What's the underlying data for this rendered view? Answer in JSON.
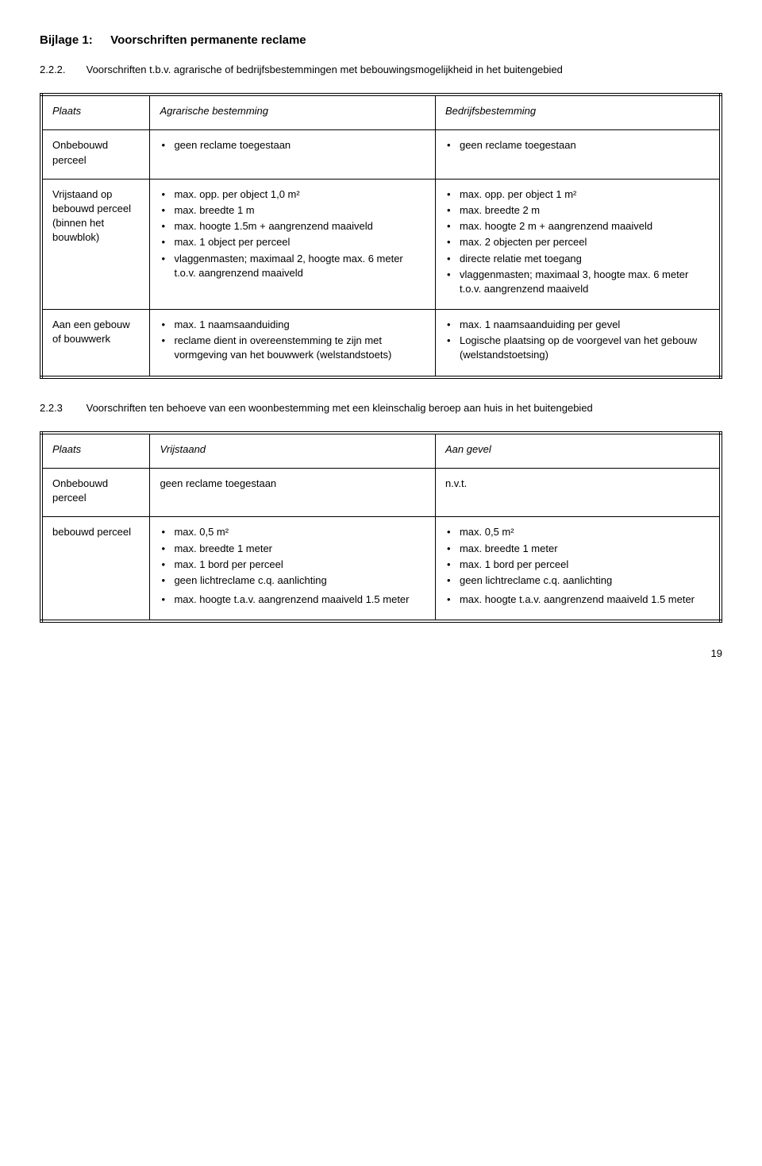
{
  "heading1": {
    "num": "Bijlage 1:",
    "text": "Voorschriften permanente reclame"
  },
  "heading2": {
    "num": "2.2.2.",
    "text": "Voorschriften t.b.v. agrarische of bedrijfsbestemmingen met bebouwingsmogelijkheid in het buitengebied"
  },
  "table1": {
    "col_label": "Plaats",
    "col2_label": "Agrarische bestemming",
    "col3_label": "Bedrijfsbestemming",
    "r1_head": "Onbebouwd perceel",
    "r1_c2": "geen reclame toegestaan",
    "r1_c3": "geen reclame toegestaan",
    "r2_head": "Vrijstaand op bebouwd perceel (binnen het bouwblok)",
    "r2_c2": {
      "items": [
        "max. opp. per object 1,0 m²",
        "max. breedte 1 m",
        "max. hoogte 1.5m + aangrenzend maaiveld",
        "max. 1 object per perceel",
        "vlaggenmasten; maximaal 2, hoogte max. 6 meter t.o.v. aangrenzend maaiveld"
      ]
    },
    "r2_c3": {
      "items": [
        "max. opp. per object 1 m²",
        "max. breedte 2 m",
        "max. hoogte 2 m + aangrenzend maaiveld",
        "max. 2 objecten per perceel",
        "directe relatie met toegang",
        "vlaggenmasten; maximaal 3, hoogte max. 6 meter t.o.v. aangrenzend maaiveld"
      ]
    },
    "r3_head": "Aan een gebouw of bouwwerk",
    "r3_c2": {
      "items": [
        "max. 1 naamsaanduiding",
        "reclame dient in overeenstemming te zijn met vormgeving van het bouwwerk (welstandstoets)"
      ]
    },
    "r3_c3": {
      "items": [
        "max. 1 naamsaanduiding per gevel",
        "Logische plaatsing op de voorgevel van het gebouw (welstandstoetsing)"
      ]
    }
  },
  "heading3": {
    "num": "2.2.3",
    "text": "Voorschriften ten behoeve van een woonbestemming met een kleinschalig beroep aan huis in het buitengebied"
  },
  "table2": {
    "col_label": "Plaats",
    "col2_label": "Vrijstaand",
    "col3_label": "Aan gevel",
    "r1_head": "Onbebouwd perceel",
    "r1_c2": "geen reclame toegestaan",
    "r1_c3": "n.v.t.",
    "r2_head": "bebouwd perceel",
    "r2_c2a": {
      "items": [
        "max. 0,5 m²",
        "max. breedte 1 meter",
        "max. 1 bord per perceel",
        "geen lichtreclame c.q. aanlichting"
      ]
    },
    "r2_c2b": {
      "items": [
        "max. hoogte t.a.v. aangrenzend maaiveld 1.5 meter"
      ]
    },
    "r2_c3a": {
      "items": [
        "max. 0,5 m²",
        "max. breedte 1 meter",
        "max. 1 bord per perceel",
        "geen lichtreclame c.q. aanlichting"
      ]
    },
    "r2_c3b": {
      "items": [
        "max. hoogte t.a.v. aangrenzend maaiveld 1.5 meter"
      ]
    }
  },
  "page_number": "19"
}
